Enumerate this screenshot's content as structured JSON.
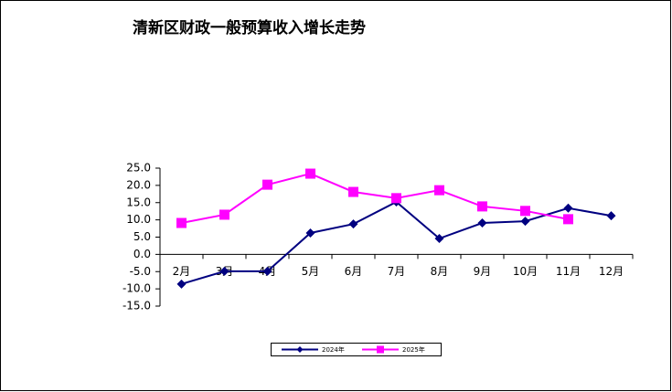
{
  "chart_data": {
    "type": "line",
    "title": "清新区财政一般预算收入增长走势",
    "categories": [
      "2月",
      "3月",
      "4月",
      "5月",
      "6月",
      "7月",
      "8月",
      "9月",
      "10月",
      "11月",
      "12月"
    ],
    "series": [
      {
        "name": "2024年",
        "color": "#000080",
        "marker": "diamond",
        "values": [
          -8.6,
          -4.9,
          -4.9,
          6.2,
          8.8,
          15.2,
          4.6,
          9.1,
          9.6,
          13.4,
          11.2
        ]
      },
      {
        "name": "2025年",
        "color": "#ff00ff",
        "marker": "square",
        "values": [
          9.1,
          11.5,
          20.2,
          23.4,
          18.1,
          16.3,
          18.6,
          13.9,
          12.6,
          10.2,
          null
        ]
      }
    ],
    "ylim": [
      -15,
      25
    ],
    "yticks": [
      {
        "value": 25,
        "label": "25.0"
      },
      {
        "value": 20,
        "label": "20.0"
      },
      {
        "value": 15,
        "label": "15.0"
      },
      {
        "value": 10,
        "label": "10.0"
      },
      {
        "value": 5,
        "label": "5.0"
      },
      {
        "value": 0,
        "label": "0.0"
      },
      {
        "value": -5,
        "label": "-5.0"
      },
      {
        "value": -10,
        "label": "-10.0"
      },
      {
        "value": -15,
        "label": "-15.0"
      }
    ],
    "grid": false,
    "legend": "bottom"
  }
}
